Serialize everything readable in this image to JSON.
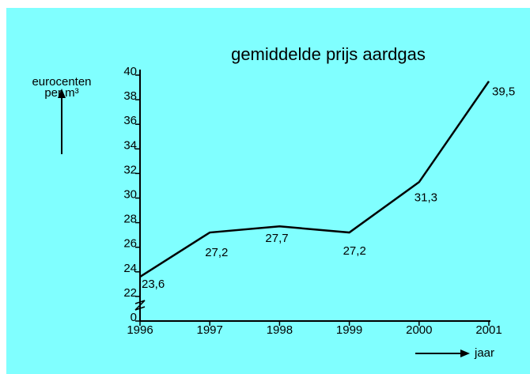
{
  "chart_data": {
    "type": "line",
    "title": "gemiddelde prijs aardgas",
    "y_label": [
      "eurocenten",
      "per m³"
    ],
    "x_label": "jaar",
    "categories": [
      "1996",
      "1997",
      "1998",
      "1999",
      "2000",
      "2001"
    ],
    "values": [
      23.6,
      27.2,
      27.7,
      27.2,
      31.3,
      39.5
    ],
    "value_labels": [
      "23,6",
      "27,2",
      "27,7",
      "27,2",
      "31,3",
      "39,5"
    ],
    "color": "#000000",
    "ylim": [
      0,
      40
    ],
    "yticks": [
      0,
      22,
      24,
      26,
      28,
      30,
      32,
      34,
      36,
      38,
      40
    ],
    "y_break": [
      0,
      22
    ]
  }
}
